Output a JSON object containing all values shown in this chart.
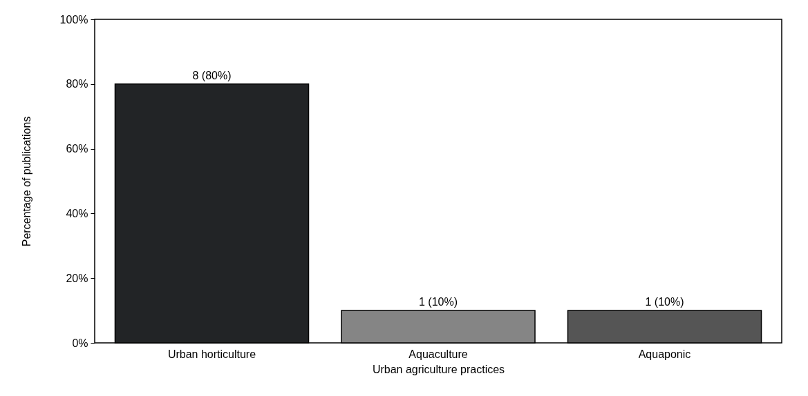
{
  "chart_data": {
    "type": "bar",
    "xlabel": "Urban agriculture practices",
    "ylabel": "Percentage of publications",
    "categories": [
      "Urban horticulture",
      "Aquaculture",
      "Aquaponic"
    ],
    "values": [
      80,
      10,
      10
    ],
    "colors": [
      "#222426",
      "#858585",
      "#555555"
    ],
    "value_labels": [
      "8 (80%)",
      "1 (10%)",
      "1 (10%)"
    ],
    "ylim": [
      0,
      100
    ],
    "yticks": [
      {
        "value": 0,
        "label": "0%"
      },
      {
        "value": 20,
        "label": "20%"
      },
      {
        "value": 40,
        "label": "40%"
      },
      {
        "value": 60,
        "label": "60%"
      },
      {
        "value": 80,
        "label": "80%"
      },
      {
        "value": 100,
        "label": "100%"
      }
    ],
    "grid": false
  }
}
